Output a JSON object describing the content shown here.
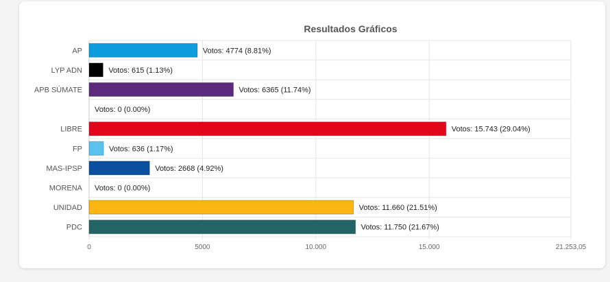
{
  "chart_data": {
    "type": "bar",
    "orientation": "horizontal",
    "title": "Resultados Gráficos",
    "categories": [
      "AP",
      "LYP ADN",
      "APB SÚMATE",
      "",
      "LIBRE",
      "FP",
      "MAS-IPSP",
      "MORENA",
      "UNIDAD",
      "PDC"
    ],
    "values": [
      4774,
      615,
      6365,
      0,
      15743,
      636,
      2668,
      0,
      11660,
      11750
    ],
    "data_labels": [
      "Votos: 4774 (8.81%)",
      "Votos: 615 (1.13%)",
      "Votos: 6365 (11.74%)",
      "Votos: 0 (0.00%)",
      "Votos: 15.743 (29.04%)",
      "Votos: 636 (1.17%)",
      "Votos: 2668 (4.92%)",
      "Votos: 0 (0.00%)",
      "Votos: 11.660 (21.51%)",
      "Votos: 11.750 (21.67%)"
    ],
    "colors": [
      "#0d9ddf",
      "#000000",
      "#5b2a7d",
      "#cccccc",
      "#e3061a",
      "#5bc2f0",
      "#0b4fa0",
      "#8b1a1a",
      "#fbb614",
      "#236566"
    ],
    "xlim": [
      0,
      21253.05
    ],
    "xticks": [
      0,
      5000,
      10000,
      15000,
      21253.05
    ],
    "xtick_labels": [
      "0",
      "5000",
      "10.000",
      "15.000",
      "21.253,05"
    ],
    "grid": true,
    "legend": "none"
  }
}
